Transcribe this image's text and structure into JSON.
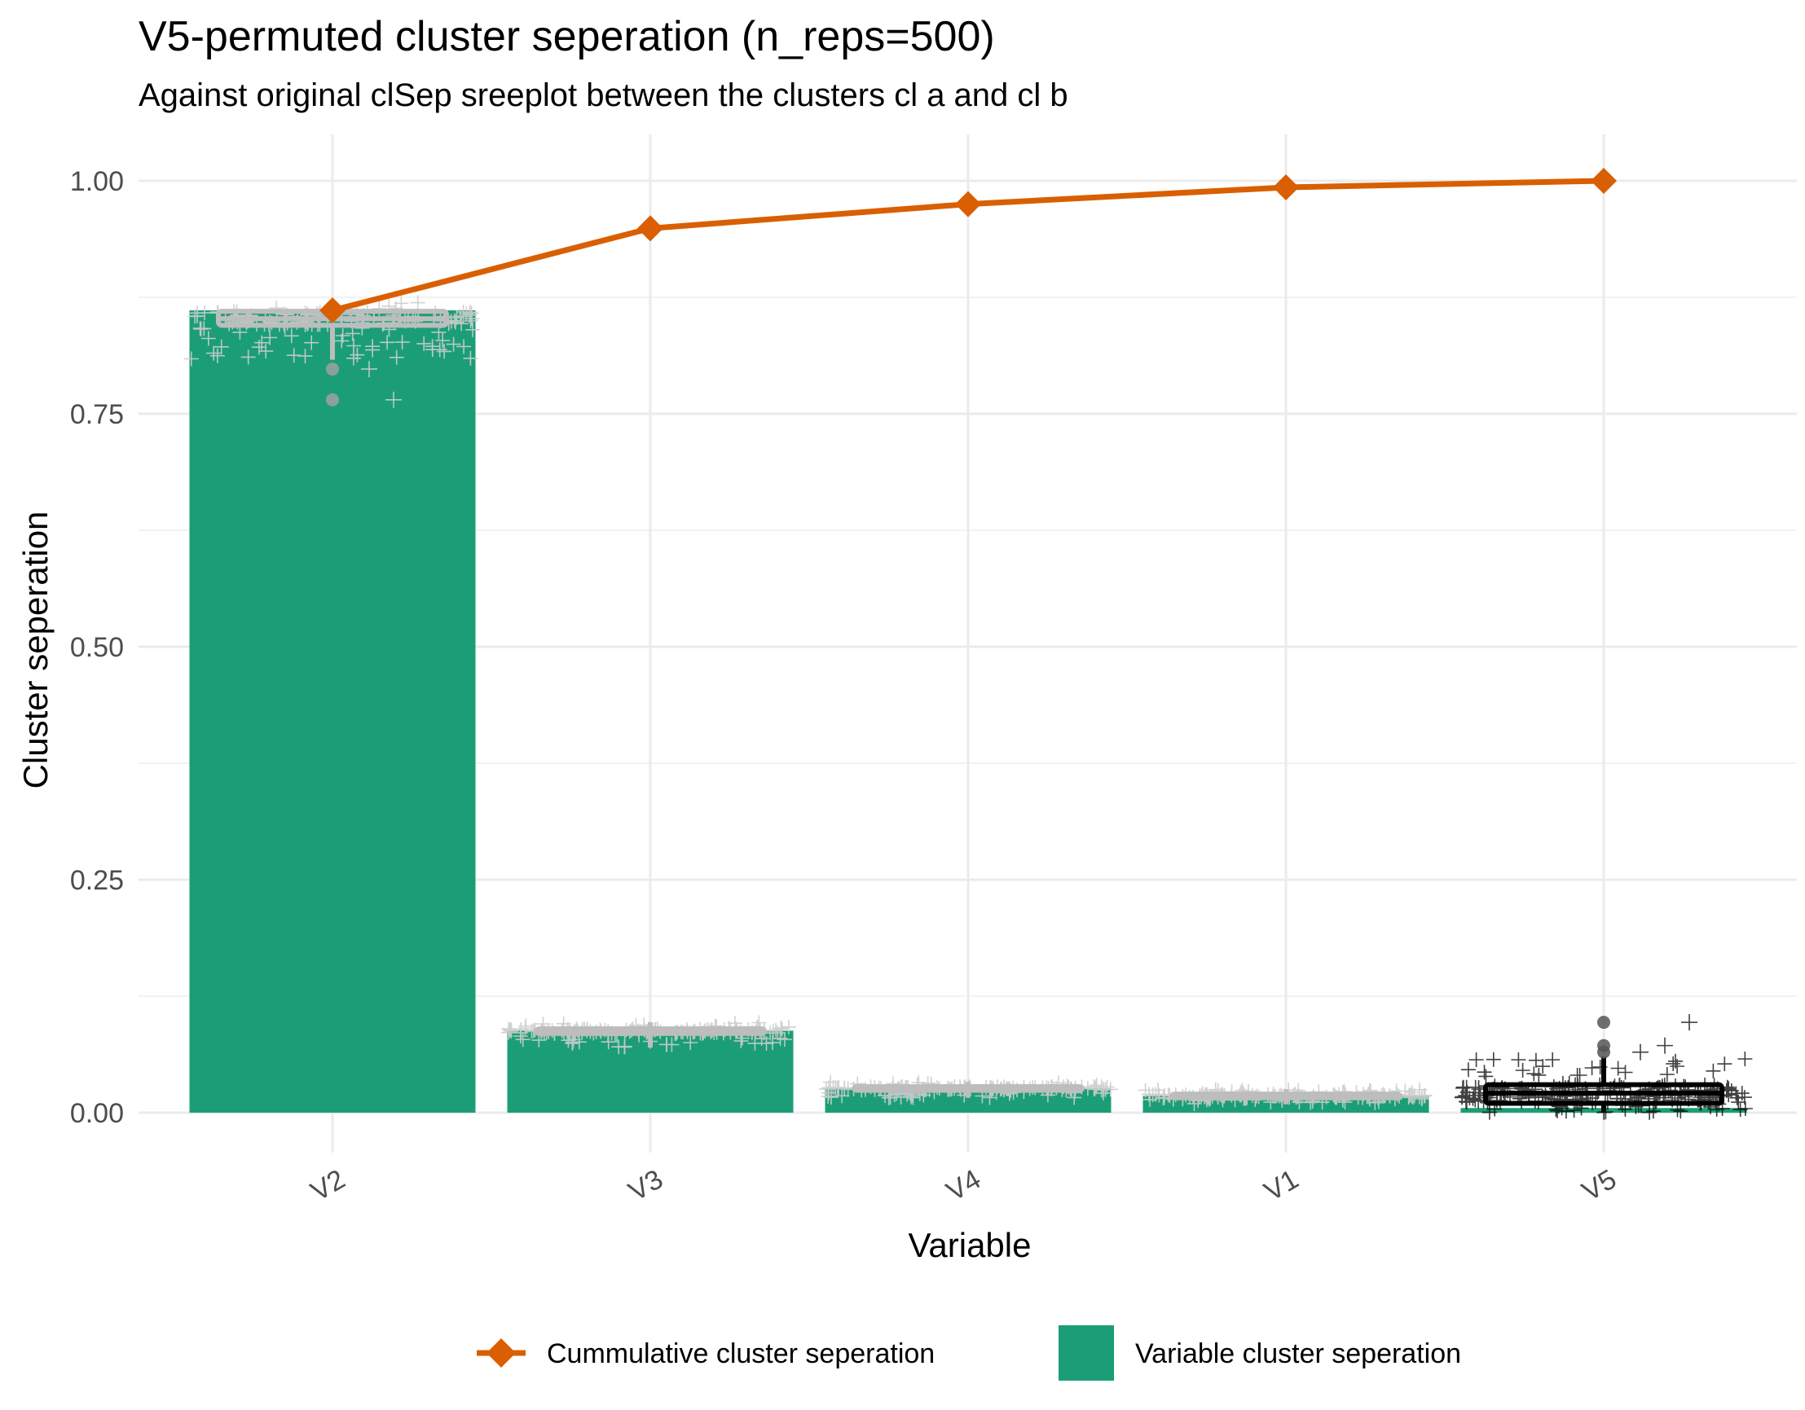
{
  "chart_data": {
    "type": "bar",
    "title": "V5-permuted cluster seperation (n_reps=500)",
    "subtitle": "Against original clSep sreeplot between the clusters cl a and cl b",
    "xlabel": "Variable",
    "ylabel": "Cluster seperation",
    "categories": [
      "V2",
      "V3",
      "V4",
      "V1",
      "V5"
    ],
    "ylim": [
      0,
      1.0
    ],
    "y_ticks": [
      0.0,
      0.25,
      0.5,
      0.75,
      1.0
    ],
    "y_tick_labels": [
      "0.00",
      "0.25",
      "0.50",
      "0.75",
      "1.00"
    ],
    "grid": true,
    "legend_position": "bottom",
    "series": [
      {
        "name": "Variable cluster seperation",
        "type": "bar",
        "color": "#1b9e77",
        "values": [
          0.861,
          0.088,
          0.026,
          0.018,
          0.005
        ]
      },
      {
        "name": "Cummulative cluster seperation",
        "type": "line",
        "marker": "diamond",
        "color": "#d95f02",
        "values": [
          0.861,
          0.949,
          0.975,
          0.993,
          1.0
        ]
      }
    ],
    "permutation_boxplots": {
      "V2": {
        "color": "#bdbdbd",
        "q1": 0.845,
        "median": 0.852,
        "q3": 0.86,
        "whisker_low": 0.808,
        "whisker_high": 0.87,
        "outliers": [
          0.798,
          0.765
        ]
      },
      "V3": {
        "color": "#bdbdbd",
        "q1": 0.085,
        "median": 0.087,
        "q3": 0.09,
        "whisker_low": 0.07,
        "whisker_high": 0.097,
        "outliers": []
      },
      "V4": {
        "color": "#bdbdbd",
        "q1": 0.024,
        "median": 0.026,
        "q3": 0.028,
        "whisker_low": 0.016,
        "whisker_high": 0.033,
        "outliers": []
      },
      "V1": {
        "color": "#bdbdbd",
        "q1": 0.016,
        "median": 0.018,
        "q3": 0.02,
        "whisker_low": 0.009,
        "whisker_high": 0.025,
        "outliers": []
      },
      "V5": {
        "color": "#000000",
        "q1": 0.01,
        "median": 0.021,
        "q3": 0.03,
        "whisker_low": 0.0,
        "whisker_high": 0.06,
        "outliers": [
          0.065,
          0.072,
          0.097
        ]
      }
    }
  }
}
